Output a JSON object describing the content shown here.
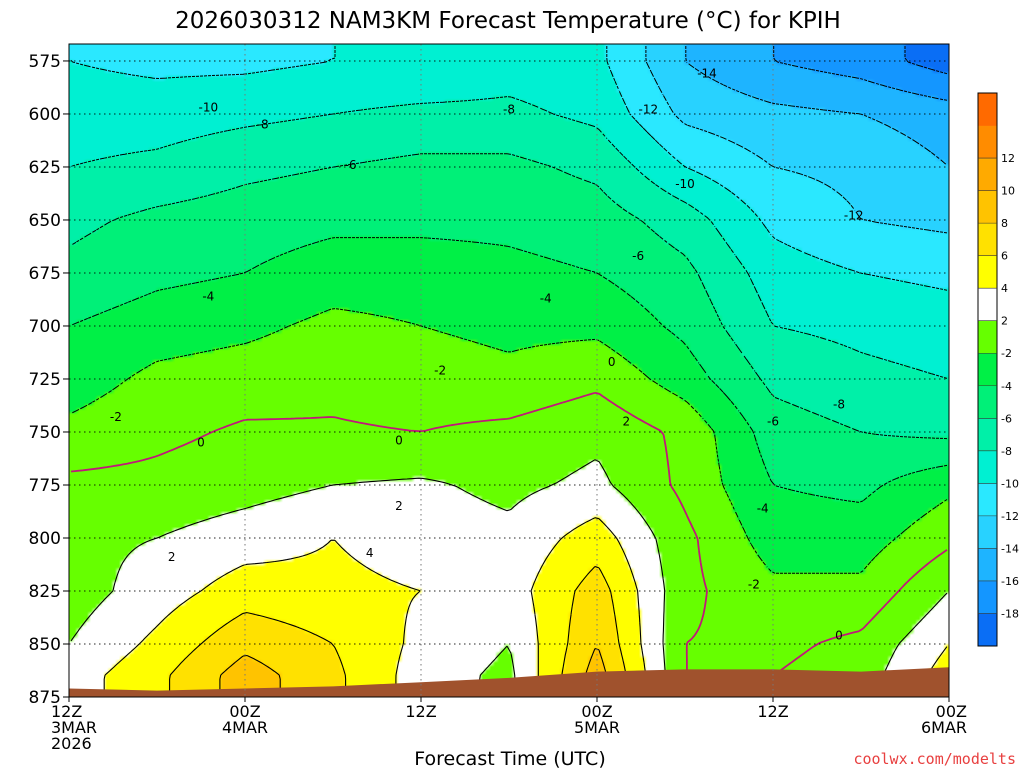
{
  "chart_data": {
    "type": "heatmap",
    "title": "2026030312 NAM3KM Forecast Temperature (°C) for KPIH",
    "xlabel": "Forecast Time (UTC)",
    "ylabel": "",
    "credit": "coolwx.com/modelts",
    "x_ticks": [
      {
        "hour": 0,
        "lines": [
          "12Z",
          "3MAR",
          "2026"
        ]
      },
      {
        "hour": 12,
        "lines": [
          "00Z",
          "4MAR"
        ]
      },
      {
        "hour": 24,
        "lines": [
          "12Z"
        ]
      },
      {
        "hour": 36,
        "lines": [
          "00Z",
          "5MAR"
        ]
      },
      {
        "hour": 48,
        "lines": [
          "12Z"
        ]
      },
      {
        "hour": 60,
        "lines": [
          "00Z",
          "6MAR"
        ]
      }
    ],
    "xlim": [
      0,
      60
    ],
    "y_ticks": [
      575,
      600,
      625,
      650,
      675,
      700,
      725,
      750,
      775,
      800,
      825,
      850,
      875
    ],
    "ylim": [
      875,
      567
    ],
    "grid": true,
    "colorbar": {
      "levels": [
        -20,
        -18,
        -16,
        -14,
        -12,
        -10,
        -8,
        -6,
        -4,
        -2,
        2,
        4,
        6,
        8,
        10,
        12,
        14
      ],
      "labels": [
        "-18",
        "-16",
        "-14",
        "-12",
        "-10",
        "-8",
        "-6",
        "-4",
        "-2",
        "2",
        "4",
        "6",
        "8",
        "10",
        "12"
      ],
      "colors": [
        "#0a6ef5",
        "#1496ff",
        "#1eb4ff",
        "#28d2ff",
        "#2ae8ff",
        "#00f0d2",
        "#00f0a8",
        "#00f078",
        "#00f046",
        "#66ff00",
        "#ffffff",
        "#ffff00",
        "#ffe100",
        "#ffc300",
        "#ffaa00",
        "#ff8c00",
        "#ff6a00"
      ]
    },
    "field_anchors": {
      "hours": [
        0,
        6,
        12,
        18,
        24,
        30,
        36,
        42,
        48,
        54,
        60
      ],
      "pressure_levels": [
        575,
        600,
        625,
        650,
        675,
        700,
        725,
        750,
        775,
        800,
        825,
        850,
        865
      ],
      "temperature": [
        [
          -10,
          -10.5,
          -10.5,
          -10,
          -10,
          -9,
          -9.5,
          -14,
          -16,
          -17,
          -19
        ],
        [
          -9,
          -9,
          -8.5,
          -8,
          -7.5,
          -7.5,
          -8.5,
          -12.5,
          -13.5,
          -14,
          -15
        ],
        [
          -8,
          -7.5,
          -6.5,
          -6,
          -5.5,
          -5.5,
          -6.5,
          -10,
          -12,
          -12.5,
          -14
        ],
        [
          -6.5,
          -5.5,
          -5,
          -4.5,
          -4.5,
          -4.5,
          -5,
          -7,
          -10.5,
          -12,
          -12.5
        ],
        [
          -5.5,
          -4.5,
          -4,
          -3,
          -3,
          -3.5,
          -4,
          -5.5,
          -9,
          -10,
          -10.5
        ],
        [
          -4,
          -3,
          -2.5,
          -1.5,
          -2,
          -2.5,
          -2.5,
          -4.5,
          -8,
          -8.5,
          -9
        ],
        [
          -3,
          -1.5,
          -1,
          -0.5,
          -1,
          -1.5,
          -0.5,
          -3,
          -6.5,
          -7.5,
          -8
        ],
        [
          -1.5,
          -0.5,
          0.3,
          0.2,
          0,
          0.5,
          1.5,
          -0.5,
          -5,
          -6,
          -6.5
        ],
        [
          0.5,
          0.6,
          1.2,
          2,
          2.3,
          1.5,
          2.5,
          -0.5,
          -4,
          -4.5,
          -2.5
        ],
        [
          1.5,
          2,
          3,
          4,
          3,
          2.5,
          5,
          0.5,
          -3,
          -3,
          -0.5
        ],
        [
          1,
          3,
          5,
          4.5,
          4,
          3,
          7,
          0.5,
          -1.5,
          -1.5,
          2
        ],
        [
          2,
          4.5,
          7.5,
          6,
          3.5,
          2,
          8,
          0,
          -0.5,
          0.5,
          4
        ],
        [
          3,
          5.5,
          9,
          6.5,
          3,
          1.5,
          9,
          0,
          0,
          1,
          5
        ]
      ]
    },
    "terrain_surface_hPa": {
      "hours": [
        0,
        6,
        12,
        18,
        24,
        30,
        36,
        42,
        48,
        54,
        60
      ],
      "pressure": [
        871,
        872,
        871,
        870,
        868,
        866,
        863,
        862,
        862,
        863,
        861
      ]
    },
    "contour_labels": [
      {
        "text": "-14",
        "hour": 43.5,
        "p": 581
      },
      {
        "text": "-12",
        "hour": 39.5,
        "p": 598
      },
      {
        "text": "-12",
        "hour": 53.5,
        "p": 648
      },
      {
        "text": "-10",
        "hour": 9.5,
        "p": 597
      },
      {
        "text": "-10",
        "hour": 42,
        "p": 633
      },
      {
        "text": "-8",
        "hour": 13.2,
        "p": 605
      },
      {
        "text": "-8",
        "hour": 30,
        "p": 598
      },
      {
        "text": "-8",
        "hour": 52.5,
        "p": 737
      },
      {
        "text": "-6",
        "hour": 19.2,
        "p": 624
      },
      {
        "text": "-6",
        "hour": 38.8,
        "p": 667
      },
      {
        "text": "-6",
        "hour": 48,
        "p": 745
      },
      {
        "text": "-4",
        "hour": 9.5,
        "p": 686
      },
      {
        "text": "-4",
        "hour": 32.5,
        "p": 687
      },
      {
        "text": "-4",
        "hour": 47.3,
        "p": 786
      },
      {
        "text": "-2",
        "hour": 3.2,
        "p": 743
      },
      {
        "text": "-2",
        "hour": 25.3,
        "p": 721
      },
      {
        "text": "-2",
        "hour": 46.7,
        "p": 822
      },
      {
        "text": "0",
        "hour": 9,
        "p": 755
      },
      {
        "text": "0",
        "hour": 22.5,
        "p": 754
      },
      {
        "text": "0",
        "hour": 37,
        "p": 717
      },
      {
        "text": "0",
        "hour": 52.5,
        "p": 846
      },
      {
        "text": "2",
        "hour": 7,
        "p": 809
      },
      {
        "text": "2",
        "hour": 22.5,
        "p": 785
      },
      {
        "text": "2",
        "hour": 38,
        "p": 745
      },
      {
        "text": "4",
        "hour": 20.5,
        "p": 807
      }
    ]
  }
}
